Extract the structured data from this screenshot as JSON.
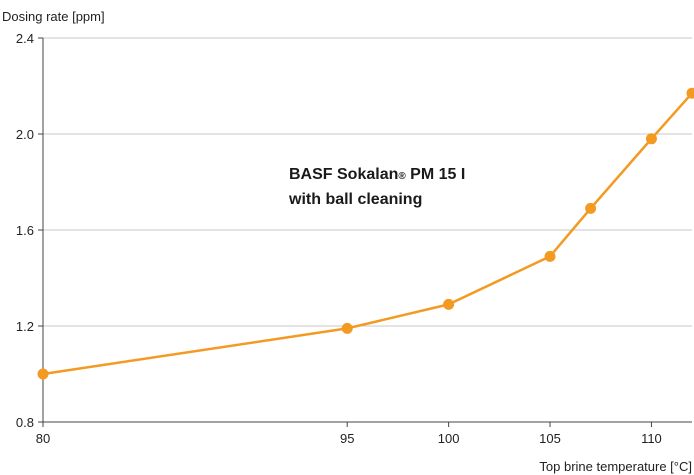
{
  "chart_data": {
    "type": "line",
    "ylabel": "Dosing rate [ppm]",
    "xlabel": "Top brine temperature [°C]",
    "x_ticks": [
      "80",
      "95",
      "100",
      "105",
      "110"
    ],
    "y_ticks": [
      "0.8",
      "1.2",
      "1.6",
      "2.0",
      "2.4"
    ],
    "xlim": [
      80,
      112
    ],
    "ylim": [
      0.8,
      2.4
    ],
    "grid": "horizontal",
    "series": [
      {
        "x": [
          80,
          95,
          100,
          105,
          107,
          110,
          112
        ],
        "y": [
          1.0,
          1.19,
          1.29,
          1.49,
          1.69,
          1.98,
          2.17
        ]
      }
    ],
    "annotation": {
      "line1_prefix": "BASF Sokalan",
      "line1_mark": "®",
      "line1_suffix": " PM 15 I",
      "line2": "with ball cleaning"
    },
    "colors": {
      "series": "#f39a23",
      "grid": "#c8c8c8",
      "axis": "#444444"
    }
  }
}
